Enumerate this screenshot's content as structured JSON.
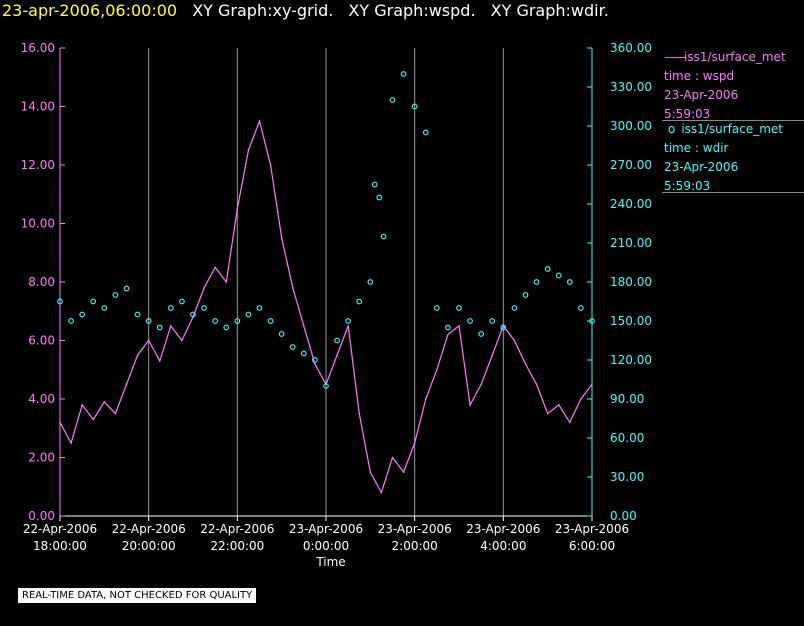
{
  "header": {
    "date": "23-apr-2006,06:00:00",
    "graphs": [
      "XY Graph:xy-grid.",
      "XY Graph:wspd.",
      "XY Graph:wdir."
    ]
  },
  "legend": {
    "wspd": {
      "line1": "iss1/surface_met",
      "line2": "time : wspd",
      "line3": "23-Apr-2006",
      "line4": "5:59:03"
    },
    "wdir": {
      "line1": "iss1/surface_met",
      "line2": "time : wdir",
      "line3": "23-Apr-2006",
      "line4": "5:59:03"
    }
  },
  "footer_note": "REAL-TIME DATA, NOT CHECKED FOR QUALITY",
  "colors": {
    "wspd": "#ff77ff",
    "wdir": "#33ffff",
    "grid": "#999999",
    "header_date": "#ffff33"
  },
  "chart_data": {
    "type": "line",
    "title": "23-apr-2006,06:00:00  XY Graph:xy-grid.  XY Graph:wspd.  XY Graph:wdir.",
    "xlabel": "Time",
    "xlim": [
      0,
      12
    ],
    "x_ticks": [
      {
        "x": 0,
        "date": "22-Apr-2006",
        "time": "18:00:00"
      },
      {
        "x": 2,
        "date": "22-Apr-2006",
        "time": "20:00:00"
      },
      {
        "x": 4,
        "date": "22-Apr-2006",
        "time": "22:00:00"
      },
      {
        "x": 6,
        "date": "23-Apr-2006",
        "time": "0:00:00"
      },
      {
        "x": 8,
        "date": "23-Apr-2006",
        "time": "2:00:00"
      },
      {
        "x": 10,
        "date": "23-Apr-2006",
        "time": "4:00:00"
      },
      {
        "x": 12,
        "date": "23-Apr-2006",
        "time": "6:00:00"
      }
    ],
    "y_left": {
      "label": "wspd",
      "ylim": [
        0,
        16
      ],
      "ticks": [
        "0.00",
        "2.00",
        "4.00",
        "6.00",
        "8.00",
        "10.00",
        "12.00",
        "14.00",
        "16.00"
      ]
    },
    "y_right": {
      "label": "wdir",
      "ylim": [
        0,
        360
      ],
      "ticks": [
        "0.00",
        "30.00",
        "60.00",
        "90.00",
        "120.00",
        "150.00",
        "180.00",
        "210.00",
        "240.00",
        "270.00",
        "300.00",
        "330.00",
        "360.00"
      ]
    },
    "series": [
      {
        "name": "wspd",
        "axis": "left",
        "style": "line",
        "x": [
          0,
          0.25,
          0.5,
          0.75,
          1,
          1.25,
          1.5,
          1.75,
          2,
          2.25,
          2.5,
          2.75,
          3,
          3.25,
          3.5,
          3.75,
          4,
          4.25,
          4.5,
          4.75,
          5,
          5.25,
          5.5,
          5.75,
          6,
          6.25,
          6.5,
          6.75,
          7,
          7.25,
          7.5,
          7.75,
          8,
          8.25,
          8.5,
          8.75,
          9,
          9.25,
          9.5,
          9.75,
          10,
          10.25,
          10.5,
          10.75,
          11,
          11.25,
          11.5,
          11.75,
          12
        ],
        "values": [
          3.2,
          2.5,
          3.8,
          3.3,
          3.9,
          3.5,
          4.5,
          5.5,
          6.0,
          5.3,
          6.5,
          6.0,
          6.8,
          7.8,
          8.5,
          8.0,
          10.5,
          12.5,
          13.5,
          12.0,
          9.5,
          7.8,
          6.5,
          5.2,
          4.5,
          5.5,
          6.5,
          3.5,
          1.5,
          0.8,
          2.0,
          1.5,
          2.5,
          4.0,
          5.0,
          6.2,
          6.5,
          3.8,
          4.5,
          5.5,
          6.5,
          6.0,
          5.2,
          4.5,
          3.5,
          3.8,
          3.2,
          4.0,
          4.5
        ]
      },
      {
        "name": "wdir",
        "axis": "right",
        "style": "scatter",
        "x": [
          0,
          0.25,
          0.5,
          0.75,
          1,
          1.25,
          1.5,
          1.75,
          2,
          2.25,
          2.5,
          2.75,
          3,
          3.25,
          3.5,
          3.75,
          4,
          4.25,
          4.5,
          4.75,
          5,
          5.25,
          5.5,
          5.75,
          6,
          6.25,
          6.5,
          6.75,
          7,
          7.1,
          7.2,
          7.3,
          7.5,
          7.75,
          8,
          8.25,
          8.5,
          8.75,
          9,
          9.25,
          9.5,
          9.75,
          10,
          10.25,
          10.5,
          10.75,
          11,
          11.25,
          11.5,
          11.75,
          12
        ],
        "values": [
          165,
          150,
          155,
          165,
          160,
          170,
          175,
          155,
          150,
          145,
          160,
          165,
          155,
          160,
          150,
          145,
          150,
          155,
          160,
          150,
          140,
          130,
          125,
          120,
          100,
          135,
          150,
          165,
          180,
          255,
          245,
          215,
          320,
          340,
          315,
          295,
          160,
          145,
          160,
          150,
          140,
          150,
          145,
          160,
          170,
          180,
          190,
          185,
          180,
          160,
          150
        ]
      }
    ]
  }
}
